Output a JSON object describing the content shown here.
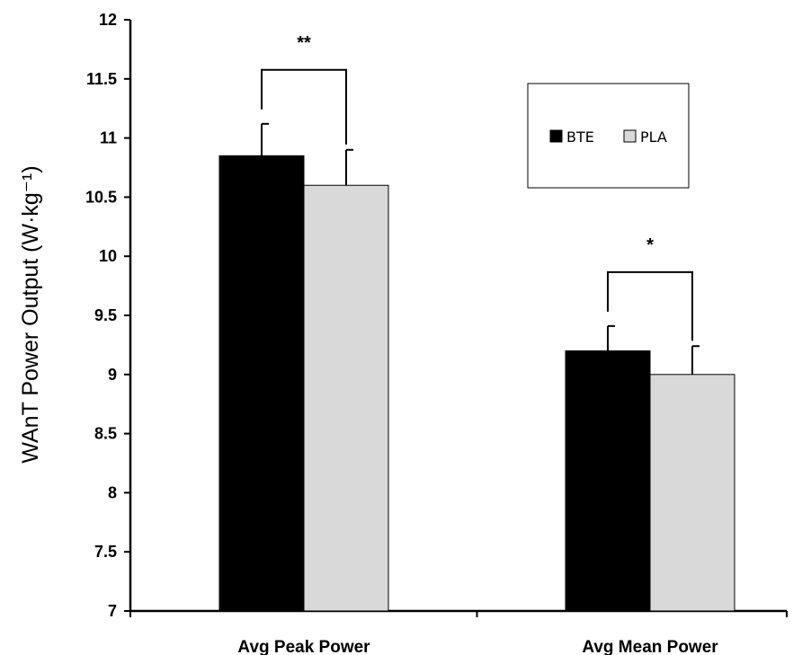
{
  "chart_data": {
    "type": "bar",
    "categories": [
      "Avg Peak Power",
      "Avg Mean Power"
    ],
    "series": [
      {
        "name": "BTE",
        "values": [
          10.85,
          9.2
        ],
        "errors": [
          0.27,
          0.21
        ],
        "color": "#000000"
      },
      {
        "name": "PLA",
        "values": [
          10.6,
          9.0
        ],
        "errors": [
          0.3,
          0.24
        ],
        "color": "#d9d9d9"
      }
    ],
    "ylabel": "WAnT Power Output (W·kg⁻¹)",
    "ylim": [
      7,
      12
    ],
    "yticks": [
      "7",
      "7.5",
      "8",
      "8.5",
      "9",
      "9.5",
      "10",
      "10.5",
      "11",
      "11.5",
      "12"
    ],
    "significance": [
      "**",
      "*"
    ],
    "grid": false,
    "legend_position": "top-right"
  }
}
